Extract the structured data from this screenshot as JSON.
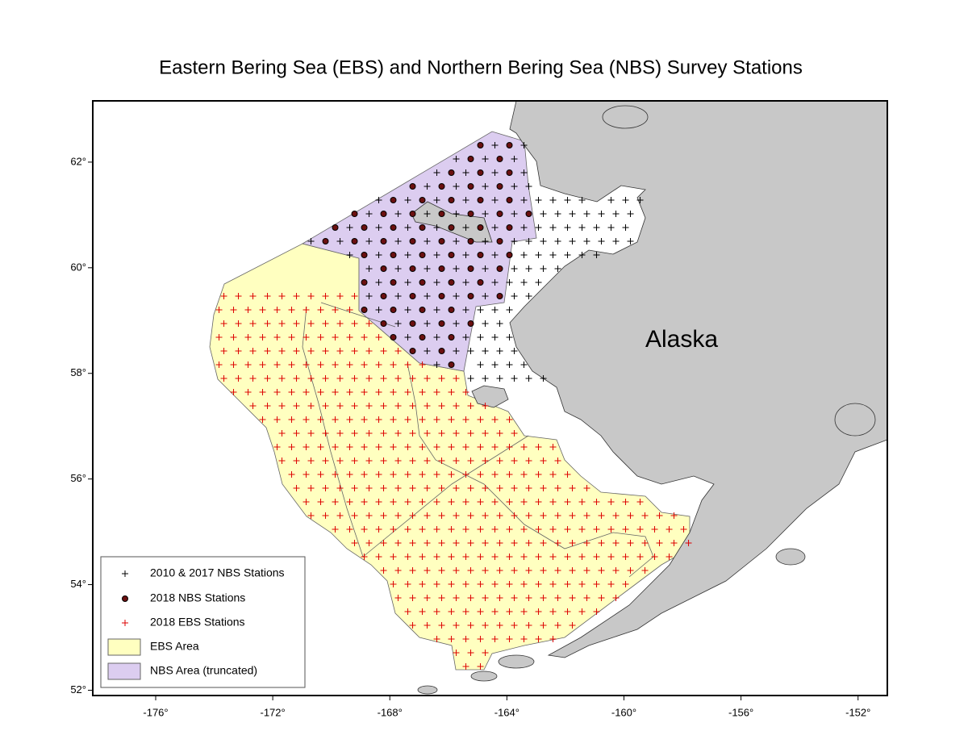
{
  "title": "Eastern Bering Sea (EBS) and Northern Bering Sea (NBS) Survey Stations",
  "map": {
    "land_label": "Alaska",
    "xlim": [
      -178.15,
      -151.0
    ],
    "ylim": [
      51.9,
      63.16
    ],
    "xticks": [
      {
        "value": -176,
        "label": "-176°"
      },
      {
        "value": -172,
        "label": "-172°"
      },
      {
        "value": -168,
        "label": "-168°"
      },
      {
        "value": -164,
        "label": "-164°"
      },
      {
        "value": -160,
        "label": "-160°"
      },
      {
        "value": -156,
        "label": "-156°"
      },
      {
        "value": -152,
        "label": "-152°"
      }
    ],
    "yticks": [
      {
        "value": 52,
        "label": "52°"
      },
      {
        "value": 54,
        "label": "54°"
      },
      {
        "value": 56,
        "label": "56°"
      },
      {
        "value": 58,
        "label": "58°"
      },
      {
        "value": 60,
        "label": "60°"
      },
      {
        "value": 62,
        "label": "62°"
      }
    ]
  },
  "legend": {
    "items": [
      "2010 & 2017 NBS Stations",
      "2018 NBS Stations",
      "2018 EBS Stations",
      "EBS Area",
      "NBS Area (truncated)"
    ]
  }
}
